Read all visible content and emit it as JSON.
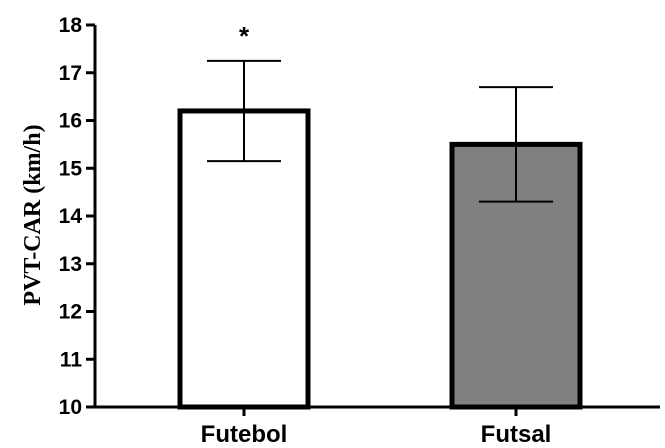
{
  "chart_data": {
    "type": "bar",
    "categories": [
      "Futebol",
      "Futsal"
    ],
    "values": [
      16.2,
      15.5
    ],
    "error": [
      1.05,
      1.2
    ],
    "bar_colors": [
      "#ffffff",
      "#808080"
    ],
    "annotations": [
      "*",
      ""
    ],
    "ylabel": "PVT-CAR (km/h)",
    "ylim": [
      10,
      18
    ],
    "yticks": [
      10,
      11,
      12,
      13,
      14,
      15,
      16,
      17,
      18
    ],
    "grid": false
  }
}
